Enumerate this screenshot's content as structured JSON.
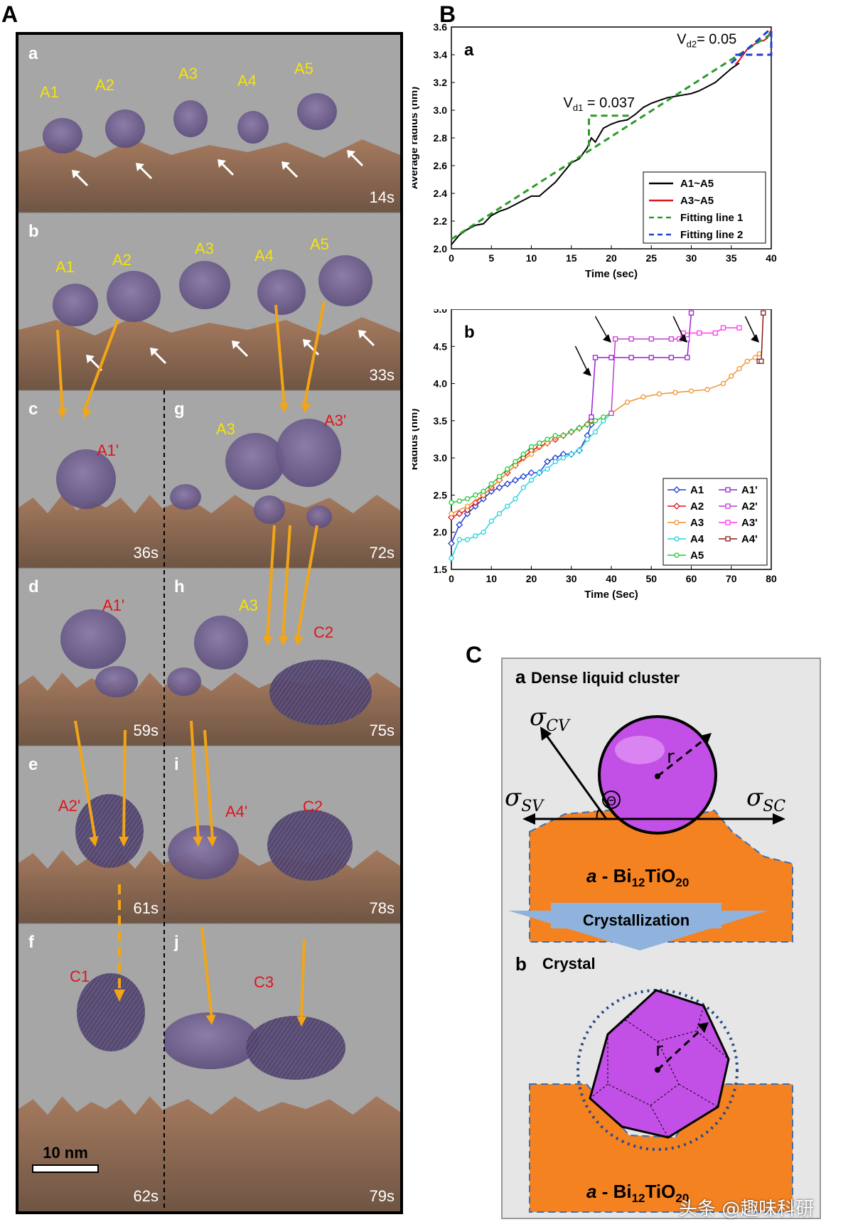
{
  "figure": {
    "panel_A_letter": "A",
    "panel_B_letter": "B",
    "panel_C_letter": "C",
    "watermark": "头条 @趣味科研"
  },
  "tem": {
    "scale_bar_label": "10 nm",
    "left_column": [
      {
        "letter": "a",
        "time": "14s",
        "labels": [
          {
            "text": "A1",
            "color": "yellow"
          },
          {
            "text": "A2",
            "color": "yellow"
          },
          {
            "text": "A3",
            "color": "yellow"
          },
          {
            "text": "A4",
            "color": "yellow"
          },
          {
            "text": "A5",
            "color": "yellow"
          }
        ]
      },
      {
        "letter": "b",
        "time": "33s",
        "labels": [
          {
            "text": "A1",
            "color": "yellow"
          },
          {
            "text": "A2",
            "color": "yellow"
          },
          {
            "text": "A3",
            "color": "yellow"
          },
          {
            "text": "A4",
            "color": "yellow"
          },
          {
            "text": "A5",
            "color": "yellow"
          }
        ]
      },
      {
        "letter": "c",
        "time": "36s",
        "labels": [
          {
            "text": "A1'",
            "color": "red"
          }
        ]
      },
      {
        "letter": "d",
        "time": "59s",
        "labels": [
          {
            "text": "A1'",
            "color": "red"
          }
        ]
      },
      {
        "letter": "e",
        "time": "61s",
        "labels": [
          {
            "text": "A2'",
            "color": "red"
          }
        ]
      },
      {
        "letter": "f",
        "time": "62s",
        "labels": [
          {
            "text": "C1",
            "color": "red"
          }
        ]
      }
    ],
    "right_column": [
      {
        "letter": "g",
        "time": "72s",
        "labels": [
          {
            "text": "A3",
            "color": "yellow"
          },
          {
            "text": "A3'",
            "color": "red"
          }
        ]
      },
      {
        "letter": "h",
        "time": "75s",
        "labels": [
          {
            "text": "A3",
            "color": "yellow"
          },
          {
            "text": "C2",
            "color": "red"
          }
        ]
      },
      {
        "letter": "i",
        "time": "78s",
        "labels": [
          {
            "text": "A4'",
            "color": "red"
          },
          {
            "text": "C2",
            "color": "red"
          }
        ]
      },
      {
        "letter": "j",
        "time": "79s",
        "labels": [
          {
            "text": "C3",
            "color": "red"
          }
        ]
      }
    ]
  },
  "chart_data": [
    {
      "type": "line",
      "panel": "a",
      "xlabel": "Time (sec)",
      "ylabel": "Average radius (nm)",
      "xlim": [
        0,
        40
      ],
      "ylim": [
        2.0,
        3.6
      ],
      "xticks": [
        "0",
        "5",
        "10",
        "15",
        "20",
        "25",
        "30",
        "35",
        "40"
      ],
      "yticks": [
        "2.0",
        "2.2",
        "2.4",
        "2.6",
        "2.8",
        "3.0",
        "3.2",
        "3.4",
        "3.6"
      ],
      "annotations": [
        {
          "main": "V",
          "sub": "d1",
          "rest": " = 0.037"
        },
        {
          "main": "V",
          "sub": "d2",
          "rest": "= 0.05"
        }
      ],
      "series": [
        {
          "name": "A1~A5",
          "color": "#000000",
          "style": "solid",
          "x": [
            0,
            1,
            2,
            3,
            4,
            5,
            6,
            7,
            8,
            9,
            10,
            11,
            12,
            13,
            14,
            15,
            16,
            17,
            17.5,
            18,
            19,
            20,
            21,
            22,
            23,
            24,
            25,
            26,
            27,
            28,
            29,
            30,
            31,
            32,
            33,
            34,
            35,
            36
          ],
          "y": [
            2.03,
            2.1,
            2.14,
            2.17,
            2.18,
            2.24,
            2.27,
            2.29,
            2.32,
            2.35,
            2.38,
            2.38,
            2.43,
            2.48,
            2.55,
            2.62,
            2.65,
            2.73,
            2.8,
            2.77,
            2.87,
            2.9,
            2.92,
            2.93,
            2.97,
            3.02,
            3.05,
            3.07,
            3.09,
            3.1,
            3.11,
            3.12,
            3.14,
            3.17,
            3.2,
            3.25,
            3.3,
            3.34
          ]
        },
        {
          "name": "A3~A5",
          "color": "#e0141e",
          "style": "solid",
          "x": [
            35.5,
            36,
            37,
            38,
            38.5,
            39,
            39.5,
            40
          ],
          "y": [
            3.33,
            3.36,
            3.44,
            3.48,
            3.5,
            3.5,
            3.52,
            3.58
          ]
        },
        {
          "name": "Fitting line 1",
          "color": "#2a9a2a",
          "style": "dash",
          "x": [
            0,
            40
          ],
          "y": [
            2.07,
            3.55
          ]
        },
        {
          "name": "Fitting line 2",
          "color": "#1f3fcf",
          "style": "dash",
          "x": [
            35,
            40
          ],
          "y": [
            3.34,
            3.59
          ]
        }
      ],
      "legend_position": "bottom-right"
    },
    {
      "type": "line",
      "panel": "b",
      "xlabel": "Time (Sec)",
      "ylabel": "Radius (nm)",
      "xlim": [
        0,
        80
      ],
      "ylim": [
        1.5,
        5.0
      ],
      "xticks": [
        "0",
        "10",
        "20",
        "30",
        "40",
        "50",
        "60",
        "70",
        "80"
      ],
      "yticks": [
        "1.5",
        "2.0",
        "2.5",
        "3.0",
        "3.5",
        "4.0",
        "4.5",
        "5.0"
      ],
      "series": [
        {
          "name": "A1",
          "color": "#1f3fcf",
          "marker": "diamond",
          "x": [
            0,
            2,
            4,
            6,
            8,
            10,
            12,
            14,
            16,
            18,
            20,
            22,
            24,
            26,
            28,
            30,
            32,
            34,
            35
          ],
          "y": [
            1.85,
            2.1,
            2.25,
            2.35,
            2.45,
            2.55,
            2.6,
            2.65,
            2.7,
            2.75,
            2.8,
            2.8,
            2.95,
            3.0,
            3.05,
            3.05,
            3.1,
            3.3,
            3.45
          ]
        },
        {
          "name": "A2",
          "color": "#e0141e",
          "marker": "diamond",
          "x": [
            0,
            2,
            4,
            6,
            8,
            10,
            12,
            14,
            16,
            18,
            20,
            22,
            24,
            26,
            28,
            30,
            32,
            34,
            35
          ],
          "y": [
            2.2,
            2.25,
            2.3,
            2.4,
            2.5,
            2.6,
            2.7,
            2.8,
            2.9,
            3.0,
            3.1,
            3.15,
            3.2,
            3.25,
            3.3,
            3.35,
            3.4,
            3.45,
            3.5
          ]
        },
        {
          "name": "A3",
          "color": "#f0922a",
          "marker": "circle",
          "x": [
            0,
            4,
            8,
            12,
            16,
            20,
            24,
            28,
            32,
            36,
            40,
            44,
            48,
            52,
            56,
            60,
            64,
            68,
            70,
            72,
            74,
            76,
            77
          ],
          "y": [
            2.25,
            2.35,
            2.5,
            2.7,
            2.9,
            3.05,
            3.2,
            3.3,
            3.4,
            3.5,
            3.6,
            3.75,
            3.82,
            3.86,
            3.88,
            3.9,
            3.92,
            4.0,
            4.1,
            4.2,
            4.3,
            4.35,
            4.4
          ]
        },
        {
          "name": "A4",
          "color": "#26d3e0",
          "marker": "circle",
          "x": [
            0,
            2,
            4,
            6,
            8,
            10,
            12,
            14,
            16,
            18,
            20,
            22,
            24,
            26,
            28,
            30,
            32,
            34,
            36,
            38,
            40
          ],
          "y": [
            1.65,
            1.9,
            1.9,
            1.95,
            2.0,
            2.15,
            2.25,
            2.35,
            2.45,
            2.6,
            2.7,
            2.8,
            2.85,
            2.95,
            3.0,
            3.05,
            3.1,
            3.25,
            3.35,
            3.5,
            3.6
          ]
        },
        {
          "name": "A5",
          "color": "#23c93a",
          "marker": "circle",
          "x": [
            0,
            2,
            4,
            6,
            8,
            10,
            12,
            14,
            16,
            18,
            20,
            22,
            24,
            26,
            28,
            30,
            32,
            34,
            36,
            38,
            40
          ],
          "y": [
            2.4,
            2.42,
            2.45,
            2.5,
            2.55,
            2.65,
            2.75,
            2.85,
            2.95,
            3.05,
            3.15,
            3.2,
            3.25,
            3.3,
            3.3,
            3.35,
            3.4,
            3.45,
            3.5,
            3.55,
            3.6
          ]
        },
        {
          "name": "A1'",
          "color": "#9b1fd6",
          "marker": "square",
          "x": [
            35,
            36,
            40,
            45,
            50,
            55,
            59,
            60
          ],
          "y": [
            3.55,
            4.35,
            4.35,
            4.35,
            4.35,
            4.35,
            4.35,
            4.95
          ]
        },
        {
          "name": "A2'",
          "color": "#c43ad6",
          "marker": "square",
          "x": [
            40,
            41,
            45,
            50,
            55,
            59
          ],
          "y": [
            3.6,
            4.6,
            4.6,
            4.6,
            4.6,
            4.6
          ]
        },
        {
          "name": "A3'",
          "color": "#ff3bf0",
          "marker": "square",
          "x": [
            57,
            58,
            62,
            66,
            68,
            72
          ],
          "y": [
            4.6,
            4.68,
            4.68,
            4.68,
            4.75,
            4.75
          ]
        },
        {
          "name": "A4'",
          "color": "#8a1a1a",
          "marker": "square",
          "x": [
            77,
            77.5,
            78
          ],
          "y": [
            4.3,
            4.3,
            4.95
          ]
        }
      ],
      "legend_position": "bottom-right"
    }
  ],
  "schematic": {
    "sub_a_letter": "a",
    "sub_a_title": "Dense liquid cluster",
    "sub_b_letter": "b",
    "sub_b_title": "Crystal",
    "sigma_cv": {
      "main": "σ",
      "sub": "CV"
    },
    "sigma_sv": {
      "main": "σ",
      "sub": "SV"
    },
    "sigma_sc": {
      "main": "σ",
      "sub": "SC"
    },
    "theta": "Θ",
    "radius_label": "r",
    "substrate": {
      "prefix": "a",
      "dash": " - Bi",
      "sub1": "12",
      "mid": "TiO",
      "sub2": "20"
    },
    "arrow_label": "Crystallization",
    "colors": {
      "sphere": "#c24fe6",
      "substrate": "#f58220",
      "panel_bg": "#e6e6e6",
      "arrow": "#8fb3dc"
    }
  }
}
